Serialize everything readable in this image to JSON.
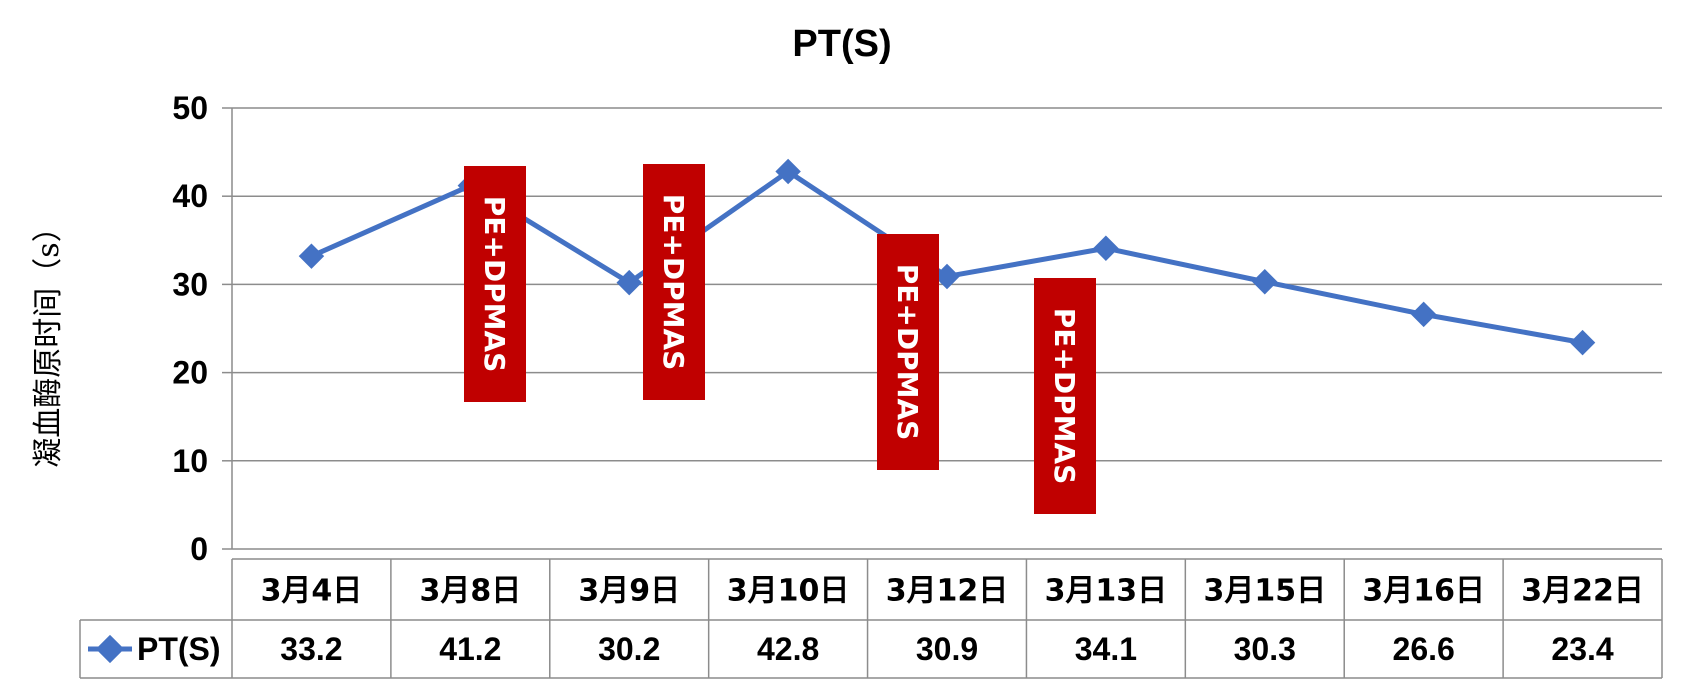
{
  "chart_data": {
    "type": "line",
    "title": "PT(S)",
    "ylabel": "凝血酶原时间（s）",
    "xlabel": "",
    "ylim": [
      0,
      50
    ],
    "yticks": [
      0,
      10,
      20,
      30,
      40,
      50
    ],
    "grid": true,
    "categories": [
      "3月4日",
      "3月8日",
      "3月9日",
      "3月10日",
      "3月12日",
      "3月13日",
      "3月15日",
      "3月16日",
      "3月22日"
    ],
    "series": [
      {
        "name": "PT(S)",
        "color": "#4472C4",
        "marker": "diamond",
        "values": [
          33.2,
          41.2,
          30.2,
          42.8,
          30.9,
          34.1,
          30.3,
          26.6,
          23.4
        ]
      }
    ],
    "data_table": true,
    "annotations": [
      {
        "text": "PE+DPMAS",
        "color": "#C00000"
      },
      {
        "text": "PE+DPMAS",
        "color": "#C00000"
      },
      {
        "text": "PE+DPMAS",
        "color": "#C00000"
      },
      {
        "text": "PE+DPMAS",
        "color": "#C00000"
      }
    ]
  }
}
